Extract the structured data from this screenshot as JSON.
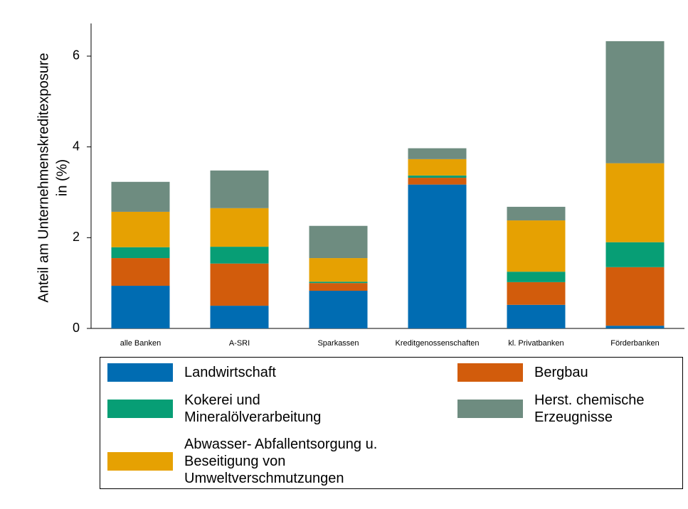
{
  "chart_data": {
    "type": "stacked-bar",
    "ylabel": [
      "Anteil am Unternehmenskreditexposure",
      "in (%)"
    ],
    "categories": [
      "alle Banken",
      "A-SRI",
      "Sparkassen",
      "Kreditgenossenschaften",
      "kl. Privatbanken",
      "Förderbanken"
    ],
    "series": [
      {
        "name": "Landwirtschaft",
        "color": "#006cb2",
        "values": [
          0.94,
          0.5,
          0.83,
          3.17,
          0.52,
          0.06
        ]
      },
      {
        "name": "Bergbau",
        "color": "#d25c0c",
        "values": [
          0.61,
          0.93,
          0.17,
          0.15,
          0.5,
          1.29
        ]
      },
      {
        "name": "Kokerei und\nMineralölverarbeitung",
        "color": "#079e75",
        "values": [
          0.24,
          0.37,
          0.03,
          0.05,
          0.23,
          0.55
        ]
      },
      {
        "name": "Abwasser- Abfallentsorgung u.\nBeseitigung von\nUmweltverschmutzungen",
        "color": "#e6a102",
        "values": [
          0.78,
          0.85,
          0.52,
          0.36,
          1.13,
          1.74
        ]
      },
      {
        "name": "Herst. chemische\nErzeugnisse",
        "color": "#6e8c80",
        "values": [
          0.66,
          0.83,
          0.71,
          0.24,
          0.3,
          2.69
        ]
      }
    ],
    "ylim": [
      0,
      6.72
    ],
    "yticks": [
      0,
      2,
      4,
      6
    ],
    "grid": false
  }
}
